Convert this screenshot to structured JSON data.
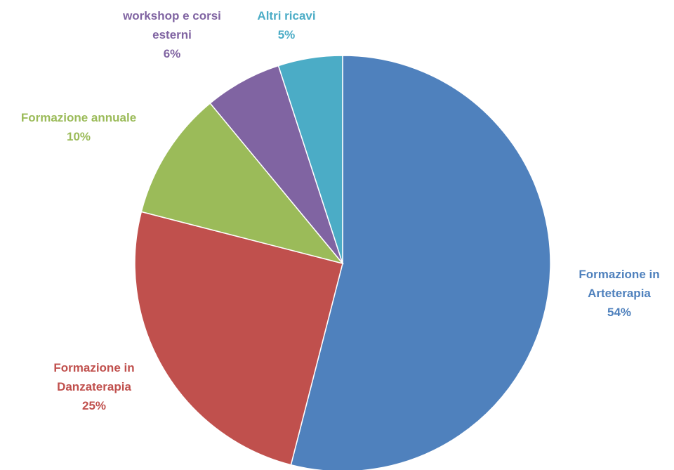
{
  "chart_data": {
    "type": "pie",
    "start_angle_deg": 0,
    "direction": "clockwise",
    "slices": [
      {
        "name": "Formazione in Arteterapia",
        "label_lines": [
          "Formazione in",
          "Arteterapia"
        ],
        "percent_label": "54%",
        "value": 54,
        "color": "#4f81bd"
      },
      {
        "name": "Formazione in Danzaterapia",
        "label_lines": [
          "Formazione in",
          "Danzaterapia"
        ],
        "percent_label": "25%",
        "value": 25,
        "color": "#c0504d"
      },
      {
        "name": "Formazione annuale",
        "label_lines": [
          "Formazione annuale"
        ],
        "percent_label": "10%",
        "value": 10,
        "color": "#9bbb59"
      },
      {
        "name": "workshop e corsi esterni",
        "label_lines": [
          "workshop e corsi",
          "esterni"
        ],
        "percent_label": "6%",
        "value": 6,
        "color": "#8064a2"
      },
      {
        "name": "Altri ricavi",
        "label_lines": [
          "Altri ricavi"
        ],
        "percent_label": "5%",
        "value": 5,
        "color": "#4bacc6"
      }
    ]
  }
}
